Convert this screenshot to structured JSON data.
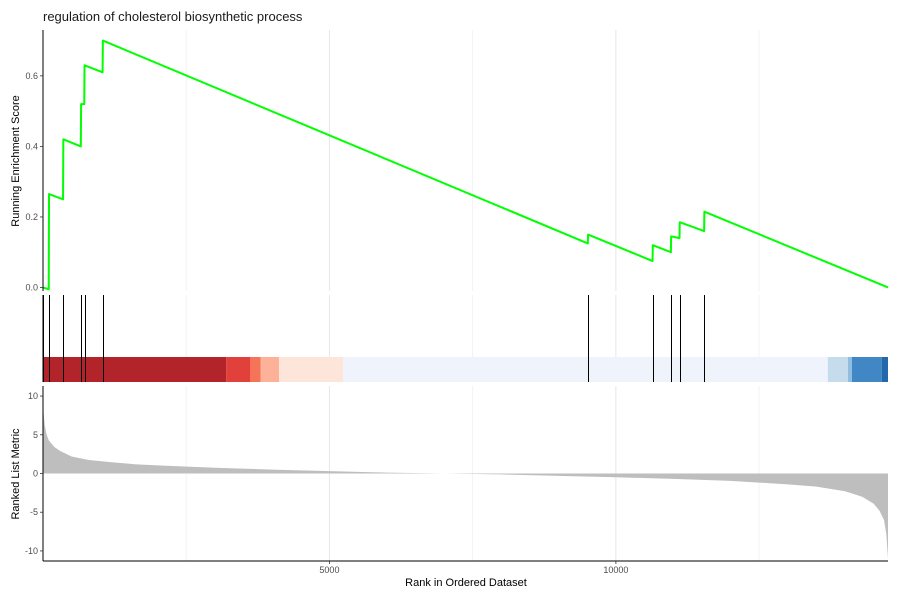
{
  "chart_data": {
    "type": "line",
    "title": "regulation of cholesterol biosynthetic process",
    "xlabel": "Rank in Ordered Dataset",
    "xlim": [
      0,
      14750
    ],
    "x_ticks": [
      5000,
      10000
    ],
    "x_tick_labels": [
      "5000",
      "10000"
    ],
    "grid": true,
    "enrichment": {
      "ylabel": "Running Enrichment Score",
      "ylim": [
        -0.01,
        0.73
      ],
      "y_ticks": [
        0.0,
        0.2,
        0.4,
        0.6
      ],
      "y_tick_labels": [
        "0.0",
        "0.2",
        "0.4",
        "0.6"
      ],
      "color": "#00ff00",
      "x": [
        0,
        100,
        105,
        350,
        355,
        660,
        665,
        720,
        725,
        1040,
        1045,
        9510,
        9515,
        10640,
        10645,
        10960,
        10965,
        11110,
        11115,
        11540,
        11545,
        14750
      ],
      "y": [
        0.0,
        -0.005,
        0.265,
        0.25,
        0.42,
        0.4,
        0.52,
        0.52,
        0.63,
        0.61,
        0.7,
        0.125,
        0.15,
        0.075,
        0.12,
        0.1,
        0.145,
        0.14,
        0.185,
        0.16,
        0.215,
        0.0
      ]
    },
    "hits": [
      0,
      105,
      355,
      665,
      725,
      1045,
      9515,
      10645,
      10965,
      11115,
      11545
    ],
    "color_bands": [
      {
        "from": 0,
        "to": 3200,
        "color": "#b2242a"
      },
      {
        "from": 3200,
        "to": 3620,
        "color": "#e2413b"
      },
      {
        "from": 3620,
        "to": 3800,
        "color": "#f57356"
      },
      {
        "from": 3800,
        "to": 4120,
        "color": "#fcb198"
      },
      {
        "from": 4120,
        "to": 5240,
        "color": "#fee5d9"
      },
      {
        "from": 5240,
        "to": 13700,
        "color": "#eff3fb"
      },
      {
        "from": 13700,
        "to": 14050,
        "color": "#c4dceb"
      },
      {
        "from": 14050,
        "to": 14120,
        "color": "#91bee0"
      },
      {
        "from": 14120,
        "to": 14640,
        "color": "#4287c5"
      },
      {
        "from": 14640,
        "to": 14750,
        "color": "#2368ac"
      }
    ],
    "ranked_metric": {
      "ylabel": "Ranked List Metric",
      "ylim": [
        -11.3,
        11.3
      ],
      "y_ticks": [
        10,
        5,
        0,
        -5,
        -10
      ],
      "y_tick_labels": [
        "10",
        "5",
        "0",
        "-5",
        "-10"
      ],
      "color": "#bebebe",
      "x": [
        0,
        10,
        30,
        60,
        100,
        200,
        300,
        500,
        800,
        1200,
        1600,
        2000,
        3000,
        4000,
        5000,
        6000,
        7000,
        8000,
        9000,
        10000,
        11000,
        12000,
        13000,
        13500,
        14000,
        14300,
        14500,
        14600,
        14680,
        14720,
        14750
      ],
      "y": [
        9.6,
        7.8,
        6.3,
        5.1,
        4.3,
        3.4,
        2.9,
        2.2,
        1.75,
        1.45,
        1.2,
        1.05,
        0.75,
        0.5,
        0.3,
        0.12,
        0.0,
        -0.12,
        -0.3,
        -0.48,
        -0.7,
        -0.95,
        -1.4,
        -1.7,
        -2.3,
        -3.0,
        -3.9,
        -4.8,
        -6.0,
        -7.8,
        -11.0
      ]
    }
  }
}
